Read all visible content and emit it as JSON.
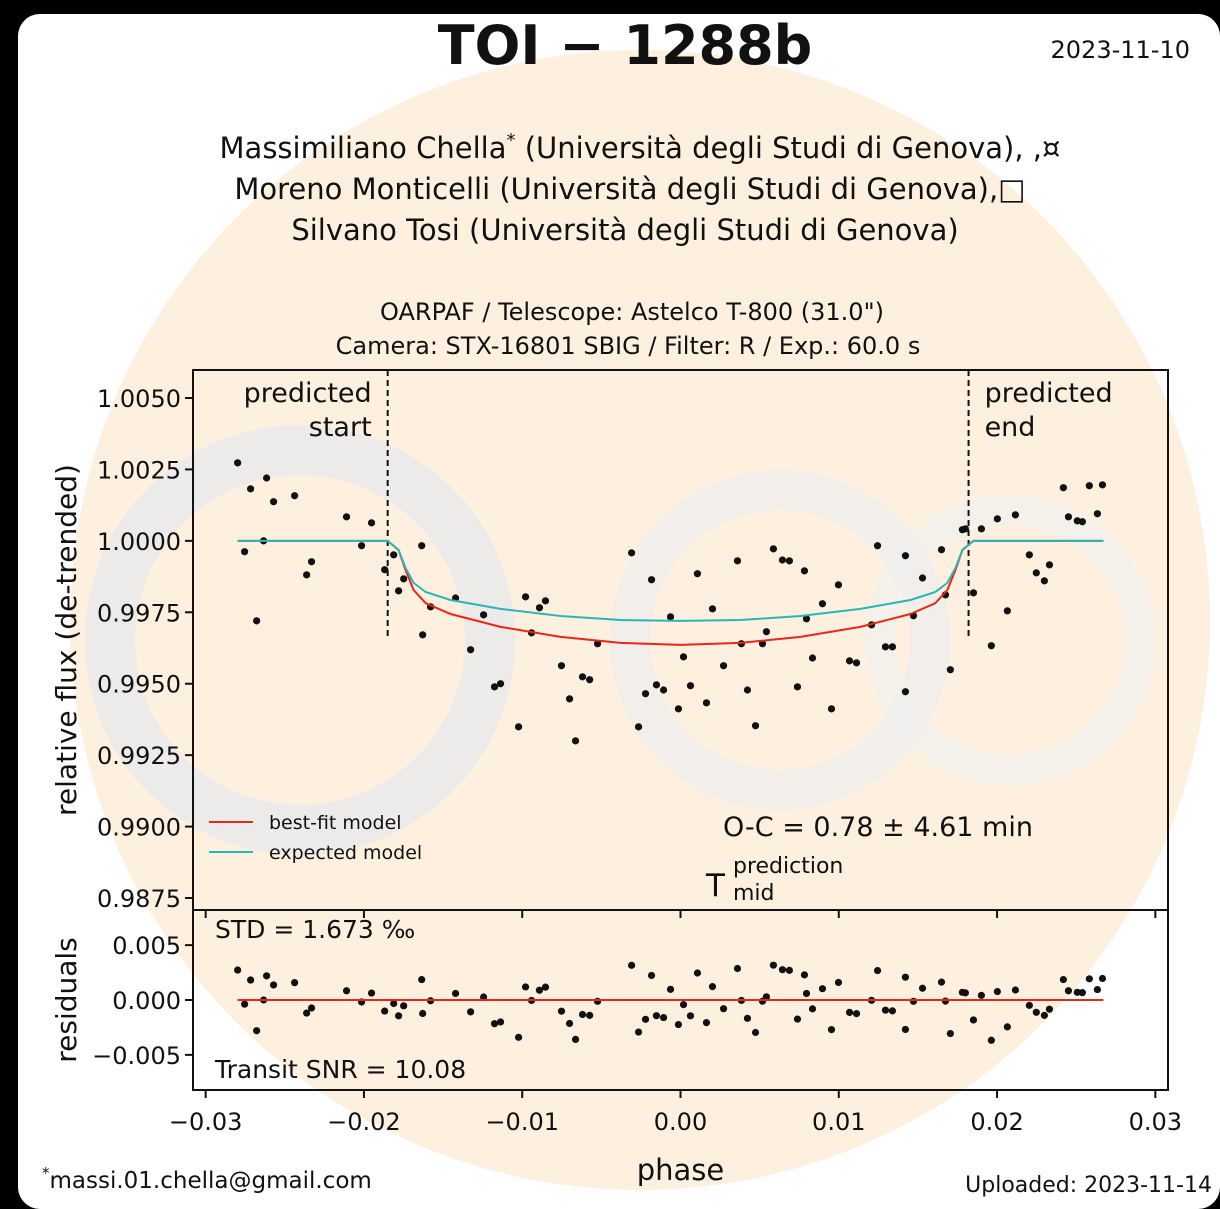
{
  "header": {
    "title": "TOI − 1288b",
    "date": "2023-11-10",
    "authors": [
      {
        "name": "Massimiliano Chella",
        "mark": "*",
        "rest": " (Università degli Studi di Genova), ,¤"
      },
      {
        "name": "Moreno Monticelli (Università degli Studi di Genova),□"
      },
      {
        "name": "Silvano Tosi (Università degli Studi di Genova)"
      }
    ],
    "instrument": [
      "OARPAF / Telescope: Astelco T-800 (31.0\")",
      "Camera: STX-16801 SBIG / Filter: R / Exp.: 60.0 s"
    ]
  },
  "footer": {
    "mark": "*",
    "email": "massi.01.chella@gmail.com",
    "uploaded": "Uploaded: 2023-11-14"
  },
  "chart_data": [
    {
      "type": "scatter",
      "ylabel": "relative flux (de-trended)",
      "xlim": [
        -0.0308,
        0.0308
      ],
      "ylim": [
        0.98708,
        1.00598
      ],
      "yticks": [
        {
          "value": 1.005,
          "label": "1.0050"
        },
        {
          "value": 1.0025,
          "label": "1.0025"
        },
        {
          "value": 1.0,
          "label": "1.0000"
        },
        {
          "value": 0.9975,
          "label": "0.9975"
        },
        {
          "value": 0.995,
          "label": "0.9950"
        },
        {
          "value": 0.9925,
          "label": "0.9925"
        },
        {
          "value": 0.99,
          "label": "0.9900"
        },
        {
          "value": 0.9875,
          "label": "0.9875"
        }
      ],
      "legend": "lower left",
      "series": [
        {
          "mode": "markers",
          "color": "#111111",
          "x": [
            -0.02798,
            -0.02754,
            -0.02716,
            -0.02678,
            -0.02634,
            -0.02615,
            -0.02571,
            -0.02438,
            -0.02362,
            -0.02331,
            -0.0211,
            -0.02015,
            -0.01952,
            -0.01869,
            -0.01812,
            -0.01781,
            -0.01749,
            -0.01635,
            -0.01629,
            -0.01579,
            -0.01421,
            -0.01326,
            -0.01244,
            -0.01175,
            -0.01137,
            -0.01023,
            -0.00979,
            -0.00941,
            -0.00891,
            -0.00853,
            -0.00752,
            -0.00701,
            -0.00663,
            -0.00619,
            -0.00574,
            -0.00524,
            -0.00309,
            -0.00265,
            -0.00221,
            -0.00183,
            -0.00152,
            -0.00107,
            -0.00063,
            -0.00013,
            0.00019,
            0.00063,
            0.00107,
            0.00164,
            0.00202,
            0.00272,
            0.0036,
            0.00385,
            0.00423,
            0.00474,
            0.00518,
            0.00543,
            0.00587,
            0.00644,
            0.00688,
            0.00739,
            0.00783,
            0.00796,
            0.00834,
            0.00897,
            0.00954,
            0.00998,
            0.01068,
            0.01112,
            0.01207,
            0.01245,
            0.01295,
            0.01339,
            0.01421,
            0.01421,
            0.01472,
            0.01529,
            0.01649,
            0.01674,
            0.01705,
            0.01781,
            0.018,
            0.01851,
            0.01901,
            0.01964,
            0.02002,
            0.02065,
            0.02116,
            0.02204,
            0.02248,
            0.02299,
            0.02331,
            0.02419,
            0.02451,
            0.02507,
            0.02539,
            0.02583,
            0.02634,
            0.02666
          ],
          "values": [
            1.00273,
            0.99962,
            1.00182,
            0.9972,
            1.0,
            1.0022,
            1.00137,
            1.00158,
            0.99881,
            0.99927,
            1.00084,
            0.99983,
            1.00063,
            0.99899,
            0.99951,
            0.99825,
            0.99867,
            0.99983,
            0.99671,
            0.99769,
            0.998,
            0.99619,
            0.99741,
            0.99489,
            0.995,
            0.99349,
            0.99804,
            0.99678,
            0.99766,
            0.9979,
            0.99563,
            0.99447,
            0.993,
            0.99524,
            0.99514,
            0.9964,
            0.99958,
            0.99349,
            0.99465,
            0.99864,
            0.99496,
            0.99478,
            0.99734,
            0.99412,
            0.99594,
            0.99493,
            0.99885,
            0.99433,
            0.99762,
            0.99563,
            0.9993,
            0.9964,
            0.99478,
            0.99353,
            0.9964,
            0.99682,
            0.99972,
            0.99933,
            0.9993,
            0.99489,
            0.99895,
            0.99727,
            0.9959,
            0.9978,
            0.99412,
            0.99846,
            0.9958,
            0.99573,
            0.99706,
            0.99983,
            0.99629,
            0.99629,
            0.99472,
            0.99948,
            0.99738,
            0.9987,
            0.99969,
            0.99811,
            0.99549,
            1.00039,
            1.00042,
            0.99818,
            1.00042,
            0.99633,
            1.00077,
            0.99755,
            1.00091,
            0.99951,
            0.99888,
            0.9986,
            0.99916,
            1.00186,
            1.00084,
            1.0007,
            1.00067,
            1.00193,
            1.00095,
            1.00196
          ]
        },
        {
          "mode": "lines",
          "name": "best-fit model",
          "color": "#e8261a",
          "x": [
            -0.02798,
            -0.0185,
            -0.01781,
            -0.01737,
            -0.01686,
            -0.0161,
            -0.01453,
            -0.01137,
            -0.00758,
            -0.00379,
            0.0,
            0.00379,
            0.00758,
            0.01137,
            0.01453,
            0.0161,
            0.01686,
            0.01737,
            0.01781,
            0.0185,
            0.02672
          ],
          "values": [
            1.0,
            1.0,
            0.99968,
            0.99898,
            0.99828,
            0.99782,
            0.99744,
            0.99699,
            0.99664,
            0.99643,
            0.99636,
            0.99643,
            0.99664,
            0.99699,
            0.99744,
            0.99782,
            0.99828,
            0.99898,
            0.99968,
            1.0,
            1.0
          ]
        },
        {
          "mode": "lines",
          "name": "expected model",
          "color": "#2bb5b8",
          "x": [
            -0.02798,
            -0.0185,
            -0.01781,
            -0.01737,
            -0.01686,
            -0.0161,
            -0.01453,
            -0.01137,
            -0.00758,
            -0.00379,
            0.0,
            0.00379,
            0.00758,
            0.01137,
            0.01453,
            0.0161,
            0.01686,
            0.01737,
            0.01781,
            0.0185,
            0.02672
          ],
          "values": [
            1.0,
            1.0,
            0.99968,
            0.99905,
            0.99853,
            0.99821,
            0.99793,
            0.99762,
            0.99737,
            0.99723,
            0.9972,
            0.99723,
            0.99737,
            0.99762,
            0.99793,
            0.99821,
            0.99853,
            0.99905,
            0.99968,
            1.0,
            1.0
          ]
        }
      ],
      "annotations": [
        {
          "lines": [
            "predicted",
            "start"
          ],
          "x": -0.0185,
          "align": "right"
        },
        {
          "lines": [
            "predicted",
            "end"
          ],
          "x": 0.0182,
          "align": "left"
        }
      ],
      "oc_text": "O-C = 0.78 ± 4.61 min",
      "tmid": {
        "base": "T",
        "sup": "prediction",
        "sub": "mid"
      }
    },
    {
      "type": "scatter",
      "ylabel": "residuals",
      "xlabel": "phase",
      "xlim": [
        -0.0308,
        0.0308
      ],
      "ylim": [
        -0.0082,
        0.0082
      ],
      "xticks": [
        {
          "value": -0.03,
          "label": "−0.03"
        },
        {
          "value": -0.02,
          "label": "−0.02"
        },
        {
          "value": -0.01,
          "label": "−0.01"
        },
        {
          "value": 0,
          "label": "0.00"
        },
        {
          "value": 0.01,
          "label": "0.01"
        },
        {
          "value": 0.02,
          "label": "0.02"
        },
        {
          "value": 0.03,
          "label": "0.03"
        }
      ],
      "yticks": [
        {
          "value": 0.005,
          "label": "0.005"
        },
        {
          "value": 0,
          "label": "0.000"
        },
        {
          "value": -0.005,
          "label": "−0.005"
        }
      ],
      "series": [
        {
          "mode": "markers",
          "color": "#111111",
          "x": [
            -0.02798,
            -0.02754,
            -0.02716,
            -0.02678,
            -0.02634,
            -0.02615,
            -0.02571,
            -0.02438,
            -0.02362,
            -0.02331,
            -0.0211,
            -0.02015,
            -0.01952,
            -0.01869,
            -0.01812,
            -0.01781,
            -0.01749,
            -0.01635,
            -0.01629,
            -0.01579,
            -0.01421,
            -0.01326,
            -0.01244,
            -0.01175,
            -0.01137,
            -0.01023,
            -0.00979,
            -0.00941,
            -0.00891,
            -0.00853,
            -0.00752,
            -0.00701,
            -0.00663,
            -0.00619,
            -0.00574,
            -0.00524,
            -0.00309,
            -0.00265,
            -0.00221,
            -0.00183,
            -0.00152,
            -0.00107,
            -0.00063,
            -0.00013,
            0.00019,
            0.00063,
            0.00107,
            0.00164,
            0.00202,
            0.00272,
            0.0036,
            0.00385,
            0.00423,
            0.00474,
            0.00518,
            0.00543,
            0.00587,
            0.00644,
            0.00688,
            0.00739,
            0.00783,
            0.00796,
            0.00834,
            0.00897,
            0.00954,
            0.00998,
            0.01068,
            0.01112,
            0.01207,
            0.01245,
            0.01295,
            0.01339,
            0.01421,
            0.01421,
            0.01472,
            0.01529,
            0.01649,
            0.01674,
            0.01705,
            0.01781,
            0.018,
            0.01851,
            0.01901,
            0.01964,
            0.02002,
            0.02065,
            0.02116,
            0.02204,
            0.02248,
            0.02299,
            0.02331,
            0.02419,
            0.02451,
            0.02507,
            0.02539,
            0.02583,
            0.02634,
            0.02666
          ],
          "values": [
            0.00273,
            -0.00038,
            0.00182,
            -0.0028,
            0.0,
            0.0022,
            0.00137,
            0.00158,
            -0.00119,
            -0.00073,
            0.00084,
            -0.00018,
            0.00063,
            -0.00101,
            -0.00032,
            -0.00144,
            -0.00053,
            0.00186,
            -0.00123,
            -7e-05,
            0.0006,
            -0.00108,
            0.00027,
            -0.00216,
            -0.002,
            -0.0034,
            0.00119,
            -4e-05,
            0.00089,
            0.00117,
            -0.00102,
            -0.00214,
            -0.00359,
            -0.00132,
            -0.0014,
            -0.00012,
            0.00316,
            -0.00292,
            -0.00176,
            0.00224,
            -0.00143,
            -0.0016,
            0.00097,
            -0.00224,
            -0.00042,
            -0.00144,
            0.00246,
            -0.00206,
            0.00122,
            -0.00079,
            0.00287,
            -4e-05,
            -0.00167,
            -0.00296,
            -0.00011,
            0.00029,
            0.00317,
            0.00276,
            0.0027,
            -0.00174,
            0.00229,
            0.0006,
            -0.00081,
            0.00103,
            -0.0027,
            0.0016,
            -0.00113,
            -0.00124,
            -3e-05,
            0.00268,
            -0.00093,
            -0.00099,
            -0.00268,
            0.00208,
            -0.00012,
            0.00107,
            0.00163,
            -0.0001,
            -0.00306,
            0.0007,
            0.00065,
            -0.00182,
            0.00042,
            -0.00367,
            0.00077,
            -0.00245,
            0.00091,
            -0.00049,
            -0.00112,
            -0.0014,
            -0.00084,
            0.00186,
            0.00084,
            0.0007,
            0.00067,
            0.00193,
            0.00095,
            0.00196
          ]
        },
        {
          "mode": "lines",
          "color": "#e8261a",
          "x": [
            -0.02798,
            0.02672
          ],
          "values": [
            0,
            0
          ]
        }
      ],
      "std_text": "STD = 1.673 ‰",
      "snr_text": "Transit SNR = 10.08"
    }
  ]
}
